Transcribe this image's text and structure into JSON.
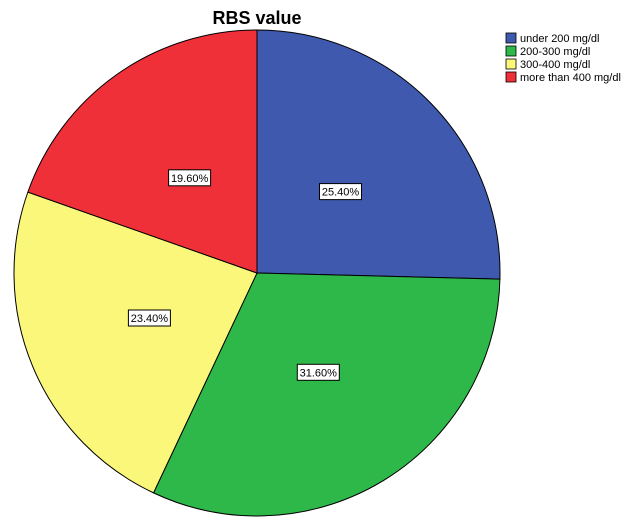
{
  "chart_data": {
    "type": "pie",
    "title": "RBS value",
    "categories": [
      "under 200 mg/dl",
      "200-300 mg/dl",
      "300-400 mg/dl",
      "more than 400 mg/dl"
    ],
    "values": [
      25.4,
      31.6,
      23.4,
      19.6
    ],
    "data_labels": [
      "25.40%",
      "31.60%",
      "23.40%",
      "19.60%"
    ],
    "colors": [
      "#3f59ae",
      "#2fb84a",
      "#fbf77a",
      "#ef3039"
    ],
    "start_angle_deg": 0,
    "direction": "clockwise",
    "legend_position": "top-right"
  }
}
